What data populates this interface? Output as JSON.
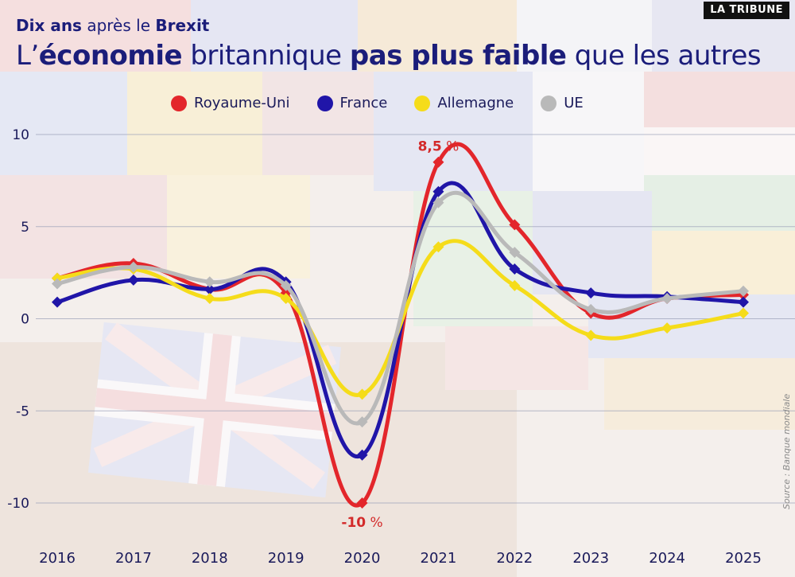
{
  "header": {
    "logo": "LA TRIBUNE",
    "kicker_part1": "Dix ans",
    "kicker_part2": " après le ",
    "kicker_part3": "Brexit",
    "title_part1": "L’",
    "title_part2": "économie",
    "title_part3": " britannique ",
    "title_part4": "pas plus faible",
    "title_part5": " que les autres"
  },
  "source": "Source : Banque mondiale",
  "chart_data": {
    "type": "line",
    "title": "L’économie britannique pas plus faible que les autres",
    "subtitle": "Dix ans après le Brexit",
    "x": [
      "2016",
      "2017",
      "2018",
      "2019",
      "2020",
      "2021",
      "2022",
      "2023",
      "2024",
      "2025"
    ],
    "ylim": [
      -11,
      10
    ],
    "yticks": [
      10,
      5,
      0,
      -5,
      -10
    ],
    "ytick_labels": [
      "10",
      "5",
      "0",
      "-5",
      "-10"
    ],
    "grid": true,
    "legend_position": "top",
    "series": [
      {
        "name": "Royaume-Uni",
        "color": "#e3262b",
        "values": [
          2.2,
          3.0,
          1.6,
          1.4,
          -10.0,
          8.5,
          5.1,
          0.3,
          1.1,
          1.3
        ]
      },
      {
        "name": "France",
        "color": "#2015a8",
        "values": [
          0.9,
          2.1,
          1.6,
          2.0,
          -7.4,
          6.9,
          2.7,
          1.4,
          1.2,
          0.9
        ]
      },
      {
        "name": "Allemagne",
        "color": "#f5dc1a",
        "values": [
          2.2,
          2.7,
          1.1,
          1.1,
          -4.1,
          3.9,
          1.8,
          -0.9,
          -0.5,
          0.3
        ]
      },
      {
        "name": "UE",
        "color": "#b9b9b9",
        "values": [
          1.9,
          2.8,
          2.0,
          1.8,
          -5.6,
          6.3,
          3.6,
          0.5,
          1.1,
          1.5
        ]
      }
    ],
    "annotations": [
      {
        "series": "Royaume-Uni",
        "x": "2021",
        "value_text": "8,5",
        "unit_text": " %"
      },
      {
        "series": "Royaume-Uni",
        "x": "2020",
        "value_text": "-10",
        "unit_text": " %"
      }
    ]
  }
}
